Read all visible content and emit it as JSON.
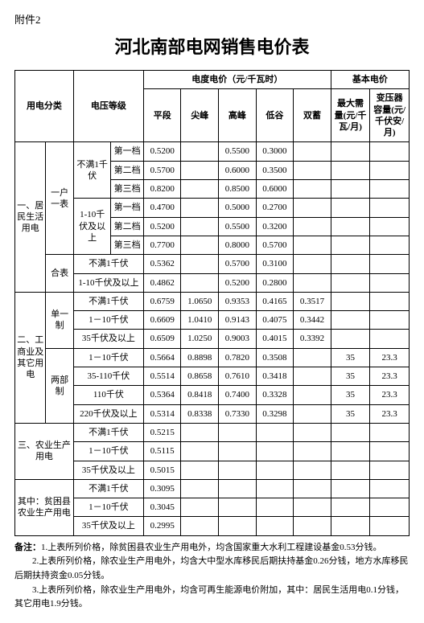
{
  "attachment": "附件2",
  "title": "河北南部电网销售电价表",
  "headers": {
    "usage_cat": "用电分类",
    "voltage": "电压等级",
    "energy_price": "电度电价（元/千瓦时）",
    "basic_price": "基本电价",
    "flat": "平段",
    "sharp": "尖峰",
    "peak": "高峰",
    "valley": "低谷",
    "dual": "双蓄",
    "max_demand": "最大需量(元/千瓦/月)",
    "transformer": "变压器容量(元/千伏安/月)"
  },
  "cat1": {
    "label": "一、居民生活用电",
    "sub1_label": "一户一表",
    "v1_label": "不满1千伏",
    "v2_label": "1-10千伏及以上",
    "hebiao": "合表",
    "hebiao_v1": "不满1千伏",
    "hebiao_v2": "1-10千伏及以上",
    "tier1": "第一档",
    "tier2": "第二档",
    "tier3": "第三档",
    "r": [
      {
        "flat": "0.5200",
        "peak": "0.5500",
        "valley": "0.3000"
      },
      {
        "flat": "0.5700",
        "peak": "0.6000",
        "valley": "0.3500"
      },
      {
        "flat": "0.8200",
        "peak": "0.8500",
        "valley": "0.6000"
      },
      {
        "flat": "0.4700",
        "peak": "0.5000",
        "valley": "0.2700"
      },
      {
        "flat": "0.5200",
        "peak": "0.5500",
        "valley": "0.3200"
      },
      {
        "flat": "0.7700",
        "peak": "0.8000",
        "valley": "0.5700"
      },
      {
        "flat": "0.5362",
        "peak": "0.5700",
        "valley": "0.3100"
      },
      {
        "flat": "0.4862",
        "peak": "0.5200",
        "valley": "0.2800"
      }
    ]
  },
  "cat2": {
    "label": "二、工商业及其它用电",
    "single": "单一制",
    "two_part": "两部制",
    "v": {
      "lt1": "不满1千伏",
      "1_10": "1－10千伏",
      "ge35": "35千伏及以上",
      "1_10b": "1－10千伏",
      "35_110": "35-110千伏",
      "110": "110千伏",
      "ge220": "220千伏及以上"
    },
    "r": [
      {
        "flat": "0.6759",
        "sharp": "1.0650",
        "peak": "0.9353",
        "valley": "0.4165",
        "dual": "0.3517"
      },
      {
        "flat": "0.6609",
        "sharp": "1.0410",
        "peak": "0.9143",
        "valley": "0.4075",
        "dual": "0.3442"
      },
      {
        "flat": "0.6509",
        "sharp": "1.0250",
        "peak": "0.9003",
        "valley": "0.4015",
        "dual": "0.3392"
      },
      {
        "flat": "0.5664",
        "sharp": "0.8898",
        "peak": "0.7820",
        "valley": "0.3508",
        "md": "35",
        "tr": "23.3"
      },
      {
        "flat": "0.5514",
        "sharp": "0.8658",
        "peak": "0.7610",
        "valley": "0.3418",
        "md": "35",
        "tr": "23.3"
      },
      {
        "flat": "0.5364",
        "sharp": "0.8418",
        "peak": "0.7400",
        "valley": "0.3328",
        "md": "35",
        "tr": "23.3"
      },
      {
        "flat": "0.5314",
        "sharp": "0.8338",
        "peak": "0.7330",
        "valley": "0.3298",
        "md": "35",
        "tr": "23.3"
      }
    ]
  },
  "cat3": {
    "label": "三、农业生产用电",
    "v": {
      "lt1": "不满1千伏",
      "1_10": "1－10千伏",
      "ge35": "35千伏及以上"
    },
    "r": [
      {
        "flat": "0.5215"
      },
      {
        "flat": "0.5115"
      },
      {
        "flat": "0.5015"
      }
    ]
  },
  "cat4": {
    "label": "其中：贫困县农业生产用电",
    "v": {
      "lt1": "不满1千伏",
      "1_10": "1－10千伏",
      "ge35": "35千伏及以上"
    },
    "r": [
      {
        "flat": "0.3095"
      },
      {
        "flat": "0.3045"
      },
      {
        "flat": "0.2995"
      }
    ]
  },
  "notes": {
    "prefix": "备注：",
    "n1": "1.上表所列价格，除贫困县农业生产用电外，均含国家重大水利工程建设基金0.53分钱。",
    "n2": "　　2.上表所列价格，除农业生产用电外，均含大中型水库移民后期扶持基金0.26分钱，地方水库移民后期扶持资金0.05分钱。",
    "n3": "　　3.上表所列价格，除农业生产用电外，均含可再生能源电价附加，其中：居民生活用电0.1分钱，其它用电1.9分钱。"
  }
}
